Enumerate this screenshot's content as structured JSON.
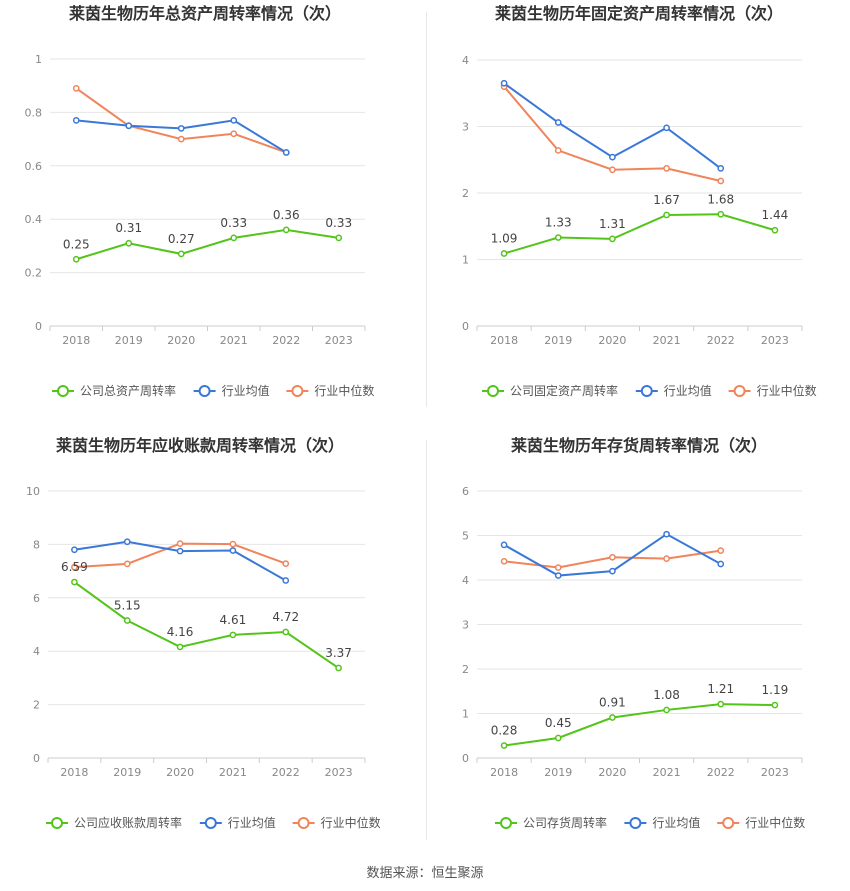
{
  "colors": {
    "company": "#52c41a",
    "industry_avg": "#3a78d8",
    "industry_median": "#f0845a",
    "grid": "#e6e6e6",
    "axis_text": "#888888",
    "title_text": "#333333",
    "label_text": "#444444"
  },
  "footer": "数据来源：恒生聚源",
  "chart_data": [
    {
      "type": "line",
      "title": "莱茵生物历年总资产周转率情况（次）",
      "categories": [
        "2018",
        "2019",
        "2020",
        "2021",
        "2022",
        "2023"
      ],
      "ylim": [
        0,
        1
      ],
      "yticks": [
        0,
        0.2,
        0.4,
        0.6,
        0.8,
        1
      ],
      "ytick_labels": [
        "0",
        "0.2",
        "0.4",
        "0.6",
        "0.8",
        "1"
      ],
      "legend_position": "bottom",
      "series": [
        {
          "name": "公司总资产周转率",
          "role": "company",
          "values": [
            0.25,
            0.31,
            0.27,
            0.33,
            0.36,
            0.33
          ],
          "labels": [
            "0.25",
            "0.31",
            "0.27",
            "0.33",
            "0.36",
            "0.33"
          ]
        },
        {
          "name": "行业均值",
          "role": "industry_avg",
          "values": [
            0.77,
            0.75,
            0.74,
            0.77,
            0.65,
            null
          ]
        },
        {
          "name": "行业中位数",
          "role": "industry_median",
          "values": [
            0.89,
            0.75,
            0.7,
            0.72,
            0.65,
            null
          ]
        }
      ]
    },
    {
      "type": "line",
      "title": "莱茵生物历年固定资产周转率情况（次）",
      "categories": [
        "2018",
        "2019",
        "2020",
        "2021",
        "2022",
        "2023"
      ],
      "ylim": [
        0,
        4
      ],
      "yticks": [
        0,
        1,
        2,
        3,
        4
      ],
      "ytick_labels": [
        "0",
        "1",
        "2",
        "3",
        "4"
      ],
      "legend_position": "bottom",
      "series": [
        {
          "name": "公司固定资产周转率",
          "role": "company",
          "values": [
            1.09,
            1.33,
            1.31,
            1.67,
            1.68,
            1.44
          ],
          "labels": [
            "1.09",
            "1.33",
            "1.31",
            "1.67",
            "1.68",
            "1.44"
          ]
        },
        {
          "name": "行业均值",
          "role": "industry_avg",
          "values": [
            3.65,
            3.06,
            2.54,
            2.98,
            2.37,
            null
          ]
        },
        {
          "name": "行业中位数",
          "role": "industry_median",
          "values": [
            3.6,
            2.64,
            2.35,
            2.37,
            2.18,
            null
          ]
        }
      ]
    },
    {
      "type": "line",
      "title": "莱茵生物历年应收账款周转率情况（次）",
      "categories": [
        "2018",
        "2019",
        "2020",
        "2021",
        "2022",
        "2023"
      ],
      "ylim": [
        0,
        10
      ],
      "yticks": [
        0,
        2,
        4,
        6,
        8,
        10
      ],
      "ytick_labels": [
        "0",
        "2",
        "4",
        "6",
        "8",
        "10"
      ],
      "legend_position": "bottom",
      "series": [
        {
          "name": "公司应收账款周转率",
          "role": "company",
          "values": [
            6.59,
            5.15,
            4.16,
            4.61,
            4.72,
            3.37
          ],
          "labels": [
            "6.59",
            "5.15",
            "4.16",
            "4.61",
            "4.72",
            "3.37"
          ]
        },
        {
          "name": "行业均值",
          "role": "industry_avg",
          "values": [
            7.8,
            8.1,
            7.75,
            7.77,
            6.65,
            null
          ]
        },
        {
          "name": "行业中位数",
          "role": "industry_median",
          "values": [
            7.15,
            7.27,
            8.03,
            8.01,
            7.28,
            null
          ]
        }
      ]
    },
    {
      "type": "line",
      "title": "莱茵生物历年存货周转率情况（次）",
      "categories": [
        "2018",
        "2019",
        "2020",
        "2021",
        "2022",
        "2023"
      ],
      "ylim": [
        0,
        6
      ],
      "yticks": [
        0,
        1,
        2,
        3,
        4,
        5,
        6
      ],
      "ytick_labels": [
        "0",
        "1",
        "2",
        "3",
        "4",
        "5",
        "6"
      ],
      "legend_position": "bottom",
      "series": [
        {
          "name": "公司存货周转率",
          "role": "company",
          "values": [
            0.28,
            0.45,
            0.91,
            1.08,
            1.21,
            1.19
          ],
          "labels": [
            "0.28",
            "0.45",
            "0.91",
            "1.08",
            "1.21",
            "1.19"
          ]
        },
        {
          "name": "行业均值",
          "role": "industry_avg",
          "values": [
            4.79,
            4.1,
            4.2,
            5.03,
            4.36,
            null
          ]
        },
        {
          "name": "行业中位数",
          "role": "industry_median",
          "values": [
            4.42,
            4.28,
            4.51,
            4.48,
            4.66,
            null
          ]
        }
      ]
    }
  ]
}
